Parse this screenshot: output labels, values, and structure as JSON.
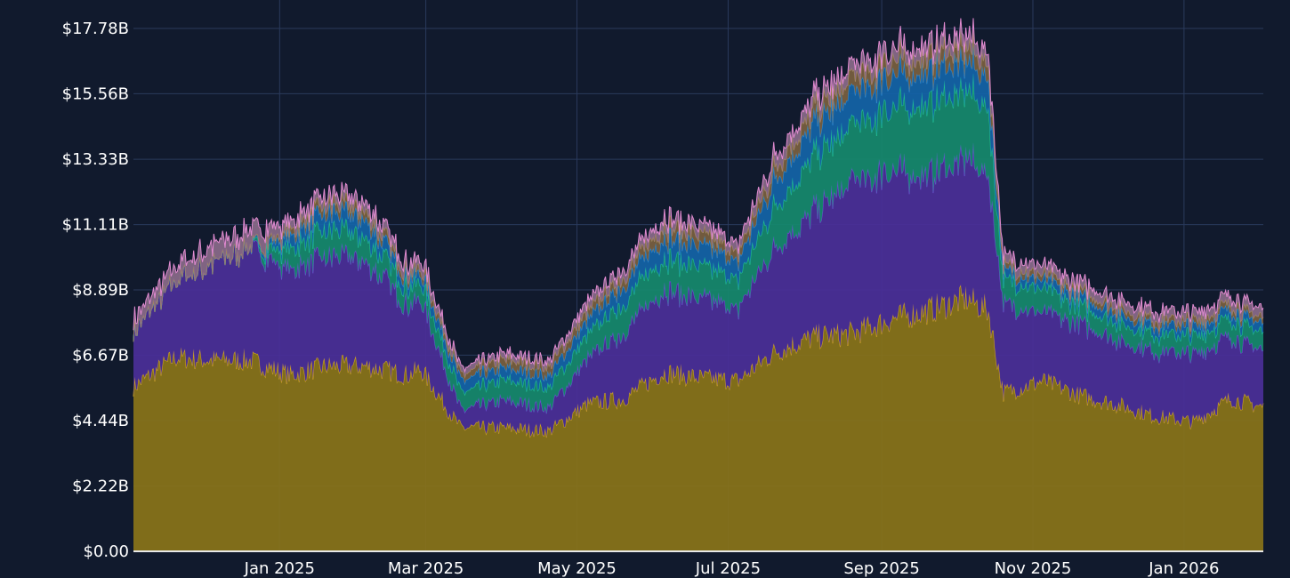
{
  "chart_data": {
    "type": "area",
    "stacked": true,
    "grid": true,
    "background": "#111a2d",
    "grid_color": "#2a3a5c",
    "y_ticks": [
      "$0.00",
      "$2.22B",
      "$4.44B",
      "$6.67B",
      "$8.89B",
      "$11.11B",
      "$13.33B",
      "$15.56B",
      "$17.78B"
    ],
    "y_tick_values": [
      0,
      2.22,
      4.44,
      6.67,
      8.89,
      11.11,
      13.33,
      15.56,
      17.78
    ],
    "ylim": [
      0,
      17.78
    ],
    "x_ticks": [
      {
        "label": "Jan 2025",
        "date": "2025-01-01"
      },
      {
        "label": "Mar 2025",
        "date": "2025-03-01"
      },
      {
        "label": "May 2025",
        "date": "2025-05-01"
      },
      {
        "label": "Jul 2025",
        "date": "2025-07-01"
      },
      {
        "label": "Sep 2025",
        "date": "2025-09-01"
      },
      {
        "label": "Nov 2025",
        "date": "2025-11-01"
      },
      {
        "label": "Jan 2026",
        "date": "2026-01-01"
      }
    ],
    "xlim": [
      "2024-11-03",
      "2026-02-02"
    ],
    "x": [
      "2024-11-03",
      "2024-11-20",
      "2024-12-05",
      "2024-12-20",
      "2025-01-05",
      "2025-01-20",
      "2025-02-05",
      "2025-02-22",
      "2025-02-27",
      "2025-03-15",
      "2025-04-01",
      "2025-04-20",
      "2025-05-05",
      "2025-05-20",
      "2025-06-05",
      "2025-06-20",
      "2025-07-05",
      "2025-07-20",
      "2025-08-05",
      "2025-08-20",
      "2025-09-05",
      "2025-09-20",
      "2025-10-05",
      "2025-10-14",
      "2025-10-20",
      "2025-11-05",
      "2025-11-20",
      "2025-12-05",
      "2025-12-20",
      "2026-01-05",
      "2026-01-20",
      "2026-02-02"
    ],
    "series": [
      {
        "color": "#8a7419",
        "line": "#d4a820",
        "values": [
          5.6,
          6.6,
          6.5,
          6.5,
          6.0,
          6.3,
          6.3,
          6.0,
          6.2,
          4.2,
          4.2,
          4.1,
          5.0,
          5.2,
          6.1,
          5.9,
          5.8,
          6.8,
          7.3,
          7.4,
          7.9,
          8.2,
          8.6,
          8.2,
          5.4,
          5.8,
          5.3,
          5.0,
          4.6,
          4.4,
          5.2,
          4.9
        ]
      },
      {
        "color": "#4b2f99",
        "line": "#6a4fd0",
        "values": [
          1.9,
          2.6,
          3.3,
          3.8,
          3.6,
          3.7,
          3.6,
          2.3,
          2.4,
          0.6,
          0.9,
          0.8,
          1.5,
          2.3,
          2.8,
          2.7,
          2.4,
          3.6,
          4.3,
          5.1,
          5.1,
          4.5,
          4.8,
          4.6,
          3.0,
          2.3,
          2.4,
          2.2,
          2.2,
          2.3,
          2.1,
          1.9
        ]
      },
      {
        "color": "#168a6e",
        "line": "#22c48f",
        "values": [
          0,
          0,
          0,
          0,
          0.7,
          0.9,
          0.8,
          0.6,
          0.6,
          0.6,
          0.7,
          0.7,
          0.8,
          1.0,
          1.1,
          1.1,
          1.0,
          1.4,
          1.9,
          1.9,
          2.1,
          2.4,
          2.3,
          2.2,
          0.8,
          0.8,
          0.6,
          0.6,
          0.6,
          0.6,
          0.6,
          0.6
        ]
      },
      {
        "color": "#1464a8",
        "line": "#2a8ad8",
        "values": [
          0,
          0,
          0,
          0,
          0.4,
          0.6,
          0.6,
          0.3,
          0.3,
          0.4,
          0.4,
          0.4,
          0.5,
          0.6,
          0.7,
          0.7,
          0.6,
          0.9,
          1.1,
          1.1,
          1.1,
          1.1,
          1.0,
          1.0,
          0.3,
          0.3,
          0.3,
          0.3,
          0.3,
          0.3,
          0.3,
          0.3
        ]
      },
      {
        "color": "#7a6040",
        "line": "#a58a5a",
        "values": [
          0,
          0,
          0,
          0,
          0.2,
          0.3,
          0.3,
          0.2,
          0.2,
          0.2,
          0.3,
          0.3,
          0.3,
          0.3,
          0.4,
          0.4,
          0.3,
          0.4,
          0.5,
          0.5,
          0.5,
          0.5,
          0.5,
          0.5,
          0.2,
          0.2,
          0.2,
          0.2,
          0.2,
          0.2,
          0.2,
          0.2
        ]
      },
      {
        "color": "#8a6a8a",
        "line": "#e08ad0",
        "values": [
          0.4,
          0.5,
          0.6,
          0.6,
          0.3,
          0.3,
          0.3,
          0.3,
          0.3,
          0.2,
          0.2,
          0.2,
          0.3,
          0.3,
          0.3,
          0.3,
          0.3,
          0.4,
          0.4,
          0.4,
          0.4,
          0.4,
          0.4,
          0.4,
          0.3,
          0.3,
          0.3,
          0.3,
          0.3,
          0.3,
          0.3,
          0.3
        ]
      }
    ]
  }
}
